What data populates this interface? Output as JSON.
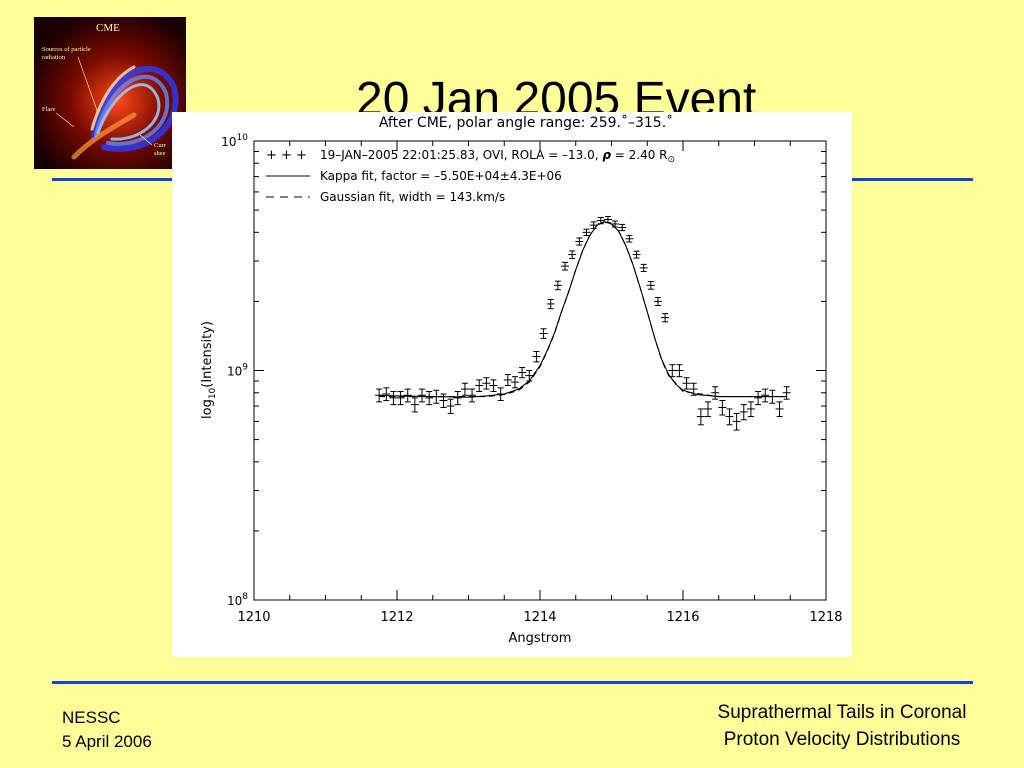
{
  "slide": {
    "title": "20 Jan 2005 Event",
    "footer_left": [
      "NESSC",
      "5 April 2006"
    ],
    "footer_right": [
      "Suprathermal Tails in Coronal",
      "Proton Velocity Distributions"
    ]
  },
  "logo": {
    "title": "CME",
    "labels": [
      "Sources of particle",
      "radiation",
      "Flare",
      "Curr",
      "shee"
    ]
  },
  "colors": {
    "background": "#ffff99",
    "rule": "#1a3fd6"
  },
  "chart_data": {
    "type": "scatter",
    "title": "After CME, polar angle range: 259.˚–315.˚",
    "xlabel": "Angstrom",
    "ylabel_parts": [
      "log",
      "10",
      "(Intensity)"
    ],
    "xlim": [
      1210,
      1218
    ],
    "ylim": [
      100000000,
      10000000000
    ],
    "yscale": "log",
    "x_ticks": [
      1210,
      1212,
      1214,
      1216,
      1218
    ],
    "x_tick_labels": [
      "1210",
      "1212",
      "1214",
      "1216",
      "1218"
    ],
    "y_tick_labels": [
      {
        "base": "10",
        "exp": "10",
        "value": 10000000000
      },
      {
        "base": "10",
        "exp": "9",
        "value": 1000000000
      },
      {
        "base": "10",
        "exp": "8",
        "value": 100000000
      }
    ],
    "legend": {
      "position": "top-left",
      "entries": [
        {
          "symbol": "+ + +",
          "text": "19–JAN–2005 22:01:25.83, OVI, ROLA = –13.0, ",
          "rho": "ρ",
          "rho_text": " = 2.40 R",
          "sub": "⊙"
        },
        {
          "symbol": "solid",
          "text": "Kappa fit, factor = –5.50E+04±4.3E+06"
        },
        {
          "symbol": "dashed",
          "text": "Gaussian fit, width = 143.km/s"
        }
      ]
    },
    "series": [
      {
        "name": "19-JAN-2005 22:01:25.83, OVI, ROLA = -13.0",
        "kind": "points_with_errorbars",
        "x": [
          1211.75,
          1211.85,
          1211.95,
          1212.05,
          1212.15,
          1212.25,
          1212.35,
          1212.45,
          1212.55,
          1212.65,
          1212.75,
          1212.85,
          1212.95,
          1213.05,
          1213.15,
          1213.25,
          1213.35,
          1213.45,
          1213.55,
          1213.65,
          1213.75,
          1213.85,
          1213.95,
          1214.05,
          1214.15,
          1214.25,
          1214.35,
          1214.45,
          1214.55,
          1214.65,
          1214.75,
          1214.85,
          1214.95,
          1215.05,
          1215.15,
          1215.25,
          1215.35,
          1215.45,
          1215.55,
          1215.65,
          1215.75,
          1215.85,
          1215.95,
          1216.05,
          1216.15,
          1216.25,
          1216.35,
          1216.45,
          1216.55,
          1216.65,
          1216.75,
          1216.85,
          1216.95,
          1217.05,
          1217.15,
          1217.25,
          1217.35,
          1217.45
        ],
        "y": [
          780000000,
          790000000,
          760000000,
          760000000,
          780000000,
          710000000,
          780000000,
          760000000,
          770000000,
          740000000,
          700000000,
          760000000,
          830000000,
          780000000,
          860000000,
          880000000,
          860000000,
          790000000,
          910000000,
          890000000,
          980000000,
          950000000,
          1150000000,
          1450000000,
          1950000000,
          2350000000,
          2850000000,
          3200000000,
          3650000000,
          4000000000,
          4300000000,
          4500000000,
          4550000000,
          4350000000,
          4200000000,
          3750000000,
          3200000000,
          2800000000,
          2350000000,
          2000000000,
          1700000000,
          1000000000,
          1000000000,
          880000000,
          830000000,
          630000000,
          680000000,
          800000000,
          690000000,
          630000000,
          600000000,
          660000000,
          680000000,
          760000000,
          780000000,
          770000000,
          680000000,
          800000000
        ],
        "err": [
          50000000,
          50000000,
          50000000,
          50000000,
          50000000,
          50000000,
          50000000,
          50000000,
          50000000,
          50000000,
          50000000,
          50000000,
          50000000,
          50000000,
          50000000,
          50000000,
          50000000,
          50000000,
          50000000,
          50000000,
          50000000,
          50000000,
          60000000,
          70000000,
          90000000,
          100000000,
          110000000,
          120000000,
          130000000,
          130000000,
          140000000,
          140000000,
          140000000,
          130000000,
          130000000,
          120000000,
          110000000,
          100000000,
          90000000,
          80000000,
          70000000,
          60000000,
          60000000,
          50000000,
          50000000,
          50000000,
          50000000,
          50000000,
          50000000,
          50000000,
          50000000,
          50000000,
          50000000,
          50000000,
          50000000,
          50000000,
          50000000,
          50000000
        ]
      },
      {
        "name": "Kappa fit",
        "kind": "line",
        "x": [
          1211.75,
          1212.0,
          1212.5,
          1213.0,
          1213.25,
          1213.5,
          1213.7,
          1213.85,
          1214.0,
          1214.1,
          1214.2,
          1214.3,
          1214.4,
          1214.5,
          1214.6,
          1214.7,
          1214.8,
          1214.9,
          1215.0,
          1215.1,
          1215.2,
          1215.3,
          1215.4,
          1215.5,
          1215.6,
          1215.7,
          1215.8,
          1215.9,
          1216.0,
          1216.2,
          1216.5,
          1217.0,
          1217.45
        ],
        "y": [
          780000000,
          775000000,
          770000000,
          765000000,
          775000000,
          790000000,
          830000000,
          900000000,
          1050000000,
          1220000000,
          1450000000,
          1800000000,
          2200000000,
          2750000000,
          3350000000,
          3900000000,
          4300000000,
          4450000000,
          4350000000,
          4050000000,
          3500000000,
          2900000000,
          2300000000,
          1800000000,
          1400000000,
          1120000000,
          960000000,
          870000000,
          820000000,
          785000000,
          770000000,
          770000000,
          770000000
        ]
      },
      {
        "name": "Gaussian fit",
        "kind": "dashed_line",
        "x": [
          1211.75,
          1212.5,
          1213.25,
          1213.5,
          1213.7,
          1213.85,
          1214.0,
          1214.1,
          1214.2,
          1214.3,
          1214.4,
          1214.5,
          1214.6,
          1214.7,
          1214.8,
          1214.9,
          1215.0,
          1215.1,
          1215.2,
          1215.3,
          1215.4,
          1215.5,
          1215.6,
          1215.7,
          1215.8,
          1216.0,
          1216.5,
          1217.45
        ],
        "y": [
          770000000,
          770000000,
          770000000,
          785000000,
          820000000,
          890000000,
          1040000000,
          1210000000,
          1440000000,
          1790000000,
          2200000000,
          2750000000,
          3350000000,
          3900000000,
          4300000000,
          4450000000,
          4350000000,
          4050000000,
          3500000000,
          2900000000,
          2300000000,
          1800000000,
          1400000000,
          1110000000,
          950000000,
          810000000,
          770000000,
          770000000
        ]
      }
    ]
  }
}
